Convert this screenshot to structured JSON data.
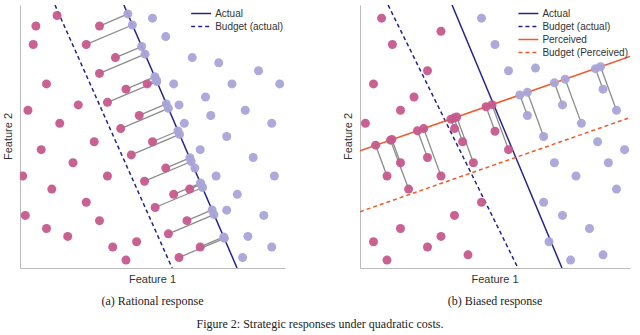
{
  "chart_data": [
    {
      "type": "scatter",
      "caption": "(a) Rational response",
      "x_label": "Feature 1",
      "y_label": "Feature 2",
      "xlim": [
        0,
        100
      ],
      "ylim": [
        0,
        100
      ],
      "tick_labels": false,
      "legend": "upper right",
      "series": [
        {
          "type": "segment",
          "color": "#8c8c8c",
          "x": [
            30,
            25,
            36,
            30,
            40,
            33,
            45,
            38,
            50,
            42,
            55,
            47,
            58,
            51,
            63,
            56,
            68,
            60,
            48,
            64
          ],
          "values": [
            92,
            85,
            80,
            74,
            68,
            63,
            58,
            53,
            48,
            43,
            38,
            33,
            28,
            23,
            18,
            13,
            8,
            4,
            70,
            30
          ],
          "x_end": [
            40.7,
            42.4,
            45.9,
            47.2,
            50.9,
            51.6,
            55.2,
            56.0,
            59.6,
            60.2,
            64.1,
            64.6,
            68.1,
            68.9,
            72.5,
            73.2,
            76.9,
            77.1,
            51.4,
            68.3
          ],
          "values_end": [
            96.6,
            92.4,
            84.2,
            81.3,
            72.7,
            70.9,
            62.4,
            60.7,
            52.1,
            50.8,
            41.9,
            40.5,
            32.3,
            30.6,
            22.1,
            20.3,
            11.8,
            11.3,
            71.5,
            31.8
          ]
        },
        {
          "name": "Actual",
          "type": "line",
          "line_style": "solid",
          "color": "#23238e",
          "x": [
            39.2,
            81.9
          ],
          "values": [
            100,
            0
          ]
        },
        {
          "name": "Budget (actual)",
          "type": "line",
          "line_style": "dashed",
          "color": "#23238e",
          "x": [
            13.2,
            57.4
          ],
          "values": [
            100,
            0
          ]
        },
        {
          "type": "scatter",
          "marker": "circle",
          "color": "#c65a8c",
          "x": [
            5,
            10,
            3,
            15,
            8,
            20,
            12,
            25,
            30,
            18,
            35,
            40,
            2,
            22,
            28,
            6,
            14,
            33,
            44,
            10,
            1,
            30,
            25,
            36,
            30,
            40,
            33,
            45,
            38,
            50,
            42,
            55,
            47,
            58,
            51,
            63,
            56,
            68,
            60,
            48,
            64
          ],
          "values": [
            85,
            70,
            60,
            55,
            45,
            40,
            30,
            25,
            18,
            12,
            8,
            3,
            20,
            62,
            48,
            92,
            96,
            35,
            10,
            15,
            35,
            92,
            85,
            80,
            74,
            68,
            63,
            58,
            53,
            48,
            43,
            38,
            33,
            28,
            23,
            18,
            13,
            8,
            4,
            70,
            30
          ]
        },
        {
          "type": "scatter",
          "marker": "circle",
          "color": "#a9a4d8",
          "x": [
            50,
            55,
            65,
            75,
            90,
            58,
            70,
            85,
            95,
            62,
            78,
            68,
            88,
            96,
            74,
            82,
            92,
            78,
            86,
            95,
            84,
            72,
            60,
            98,
            80,
            66,
            40.7,
            42.4,
            45.9,
            47.2,
            50.9,
            51.6,
            55.2,
            56.0,
            59.6,
            60.2,
            64.1,
            64.6,
            68.1,
            68.9,
            72.5,
            73.2,
            76.9,
            77.1,
            51.4,
            68.3
          ],
          "values": [
            95,
            88,
            80,
            78,
            75,
            70,
            65,
            60,
            55,
            55,
            50,
            45,
            42,
            35,
            35,
            28,
            20,
            22,
            12,
            8,
            4,
            58,
            62,
            70,
            70,
            38,
            96.6,
            92.4,
            84.2,
            81.3,
            72.7,
            70.9,
            62.4,
            60.7,
            52.1,
            50.8,
            41.9,
            40.5,
            32.3,
            30.6,
            22.1,
            20.3,
            11.8,
            11.3,
            71.5,
            31.8
          ]
        }
      ]
    },
    {
      "type": "scatter",
      "caption": "(b) Biased response",
      "x_label": "Feature 1",
      "y_label": "Feature 2",
      "xlim": [
        0,
        100
      ],
      "ylim": [
        0,
        100
      ],
      "tick_labels": false,
      "legend": "upper right",
      "series": [
        {
          "type": "segment",
          "color": "#8c8c8c",
          "x": [
            10,
            18,
            25,
            30,
            38,
            42,
            50,
            55,
            62,
            68,
            75,
            82,
            90,
            95,
            35,
            15
          ],
          "values": [
            35,
            30,
            42,
            35,
            48,
            40,
            52,
            45,
            58,
            50,
            62,
            55,
            68,
            60,
            53,
            40
          ],
          "x_end": [
            5.8,
            11.3,
            21.3,
            23.6,
            34.8,
            35.8,
            46.7,
            48.9,
            59.2,
            62.0,
            72.0,
            76.0,
            87.2,
            89.1,
            33.7,
            11.8
          ],
          "values_end": [
            46.7,
            48.6,
            52.2,
            53.0,
            57.0,
            57.4,
            61.3,
            62.1,
            65.8,
            66.8,
            70.4,
            71.8,
            75.8,
            76.5,
            56.6,
            48.9
          ]
        },
        {
          "name": "Actual",
          "type": "line",
          "line_style": "solid",
          "color": "#23238e",
          "x": [
            34.1,
            74.8
          ],
          "values": [
            100,
            0
          ]
        },
        {
          "name": "Budget (actual)",
          "type": "line",
          "line_style": "dashed",
          "color": "#23238e",
          "x": [
            10.4,
            58.5
          ],
          "values": [
            100,
            0
          ]
        },
        {
          "name": "Perceived",
          "type": "line",
          "line_style": "solid",
          "color": "#f05a28",
          "x": [
            0,
            100
          ],
          "values": [
            44.6,
            80.4
          ]
        },
        {
          "name": "Budget (Perceived)",
          "type": "line",
          "line_style": "dashed",
          "color": "#f05a28",
          "x": [
            0,
            100
          ],
          "values": [
            21.4,
            57.2
          ]
        },
        {
          "type": "scatter",
          "marker": "circle",
          "color": "#c65a8c",
          "x": [
            5,
            12,
            20,
            8,
            25,
            30,
            2,
            15,
            5,
            15,
            25,
            35,
            40,
            10,
            45,
            30,
            10,
            18,
            25,
            30,
            38,
            42,
            50,
            55,
            35,
            15,
            5.8,
            11.3,
            21.3,
            23.6,
            34.8,
            35.8,
            46.7,
            48.9,
            33.7,
            11.8
          ],
          "values": [
            70,
            85,
            65,
            95,
            75,
            90,
            55,
            60,
            10,
            15,
            8,
            20,
            5,
            3,
            25,
            12,
            35,
            30,
            42,
            35,
            48,
            40,
            52,
            45,
            53,
            40,
            46.7,
            48.6,
            52.2,
            53.0,
            57.0,
            57.4,
            61.3,
            62.1,
            56.6,
            48.9
          ]
        },
        {
          "type": "scatter",
          "marker": "circle",
          "color": "#a9a4d8",
          "x": [
            50,
            45,
            55,
            65,
            75,
            85,
            95,
            70,
            90,
            80,
            68,
            98,
            88,
            78,
            72,
            92,
            62,
            68,
            75,
            82,
            90,
            95,
            59.2,
            62.0,
            72.0,
            76.0,
            87.2,
            89.1
          ],
          "values": [
            85,
            95,
            75,
            76,
            20,
            15,
            30,
            10,
            5,
            35,
            25,
            45,
            48,
            3,
            40,
            40,
            58,
            50,
            62,
            55,
            68,
            60,
            65.8,
            66.8,
            70.4,
            71.8,
            75.8,
            76.5
          ]
        }
      ]
    }
  ],
  "figure_caption": "Figure 2: Strategic responses under quadratic costs."
}
